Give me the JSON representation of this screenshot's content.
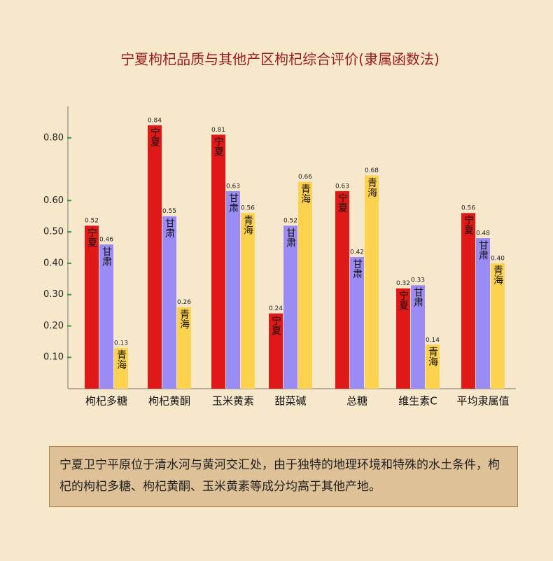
{
  "chart_data": {
    "type": "bar",
    "title": "宁夏枸杞品质与其他产区枸杞综合评价(隶属函数法)",
    "categories": [
      "枸杞多糖",
      "枸杞黄酮",
      "玉米黄素",
      "甜菜碱",
      "总糖",
      "维生素C",
      "平均隶属值"
    ],
    "series": [
      {
        "name": "宁夏",
        "color": "#e01818",
        "values": [
          0.52,
          0.84,
          0.81,
          0.24,
          0.63,
          0.32,
          0.56
        ],
        "value_labels": [
          "0.52",
          "0.84",
          "0.81",
          "0.24",
          "0.63",
          "0.32",
          "0.56"
        ]
      },
      {
        "name": "甘肃",
        "color": "#9a8cf4",
        "values": [
          0.46,
          0.55,
          0.63,
          0.52,
          0.42,
          0.33,
          0.48
        ],
        "value_labels": [
          "0.46",
          "0.55",
          "0.63",
          "0.52",
          "0.42",
          "0.33",
          "0.48"
        ]
      },
      {
        "name": "青海",
        "color": "#fdd24e",
        "values": [
          0.13,
          0.26,
          0.56,
          0.66,
          0.68,
          0.14,
          0.4
        ],
        "value_labels": [
          "0.13",
          "0.26",
          "0.56",
          "0.66",
          "0.68",
          "0.14",
          "0.40"
        ]
      }
    ],
    "ylim": [
      0,
      0.9
    ],
    "yticks": [
      {
        "value": 0.1,
        "label": "0.10"
      },
      {
        "value": 0.2,
        "label": "0.20"
      },
      {
        "value": 0.3,
        "label": "0.30"
      },
      {
        "value": 0.4,
        "label": "0.40"
      },
      {
        "value": 0.5,
        "label": "0.50"
      },
      {
        "value": 0.6,
        "label": "0.60"
      },
      {
        "value": 0.8,
        "label": "0.80"
      }
    ]
  },
  "note": "宁夏卫宁平原位于清水河与黄河交汇处，由于独特的地理环境和特殊的水土条件，枸杞的枸杞多糖、枸杞黄酮、玉米黄素等成分均高于其他产地。"
}
